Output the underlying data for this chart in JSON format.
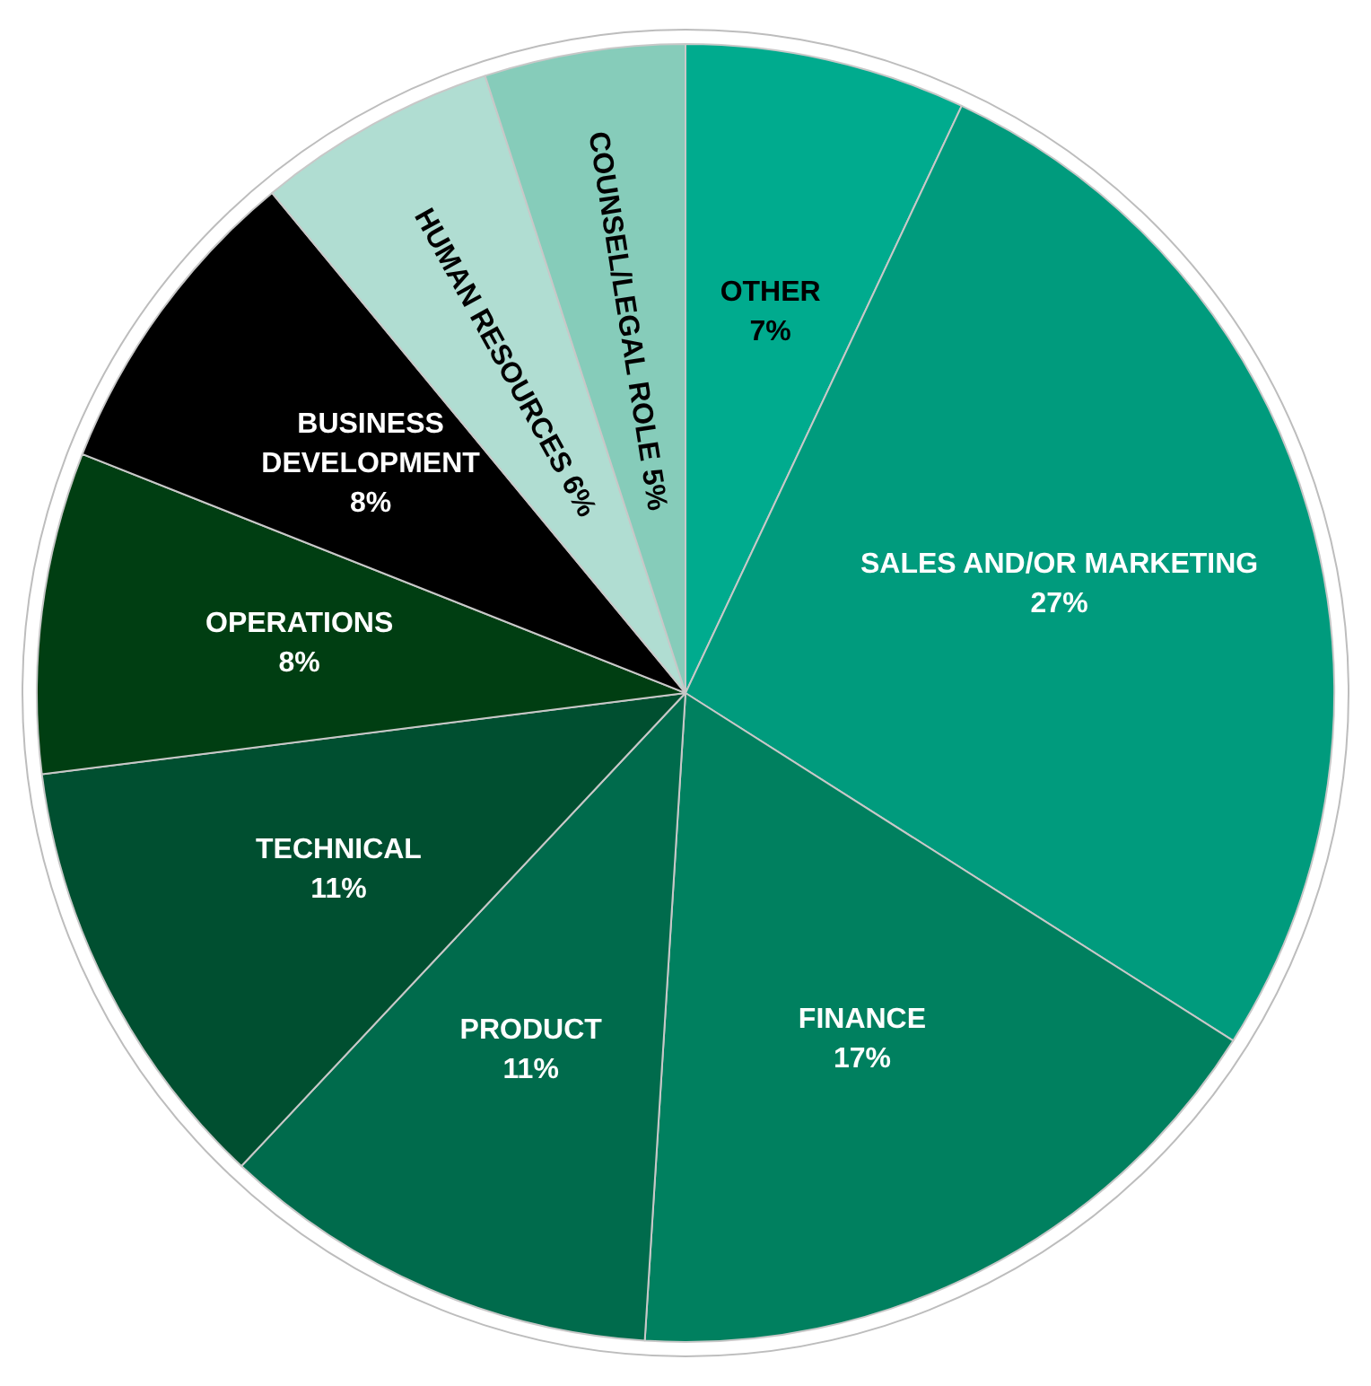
{
  "chart_data": {
    "type": "pie",
    "categories": [
      "OTHER",
      "SALES AND/OR MARKETING",
      "FINANCE",
      "PRODUCT",
      "TECHNICAL",
      "OPERATIONS",
      "BUSINESS DEVELOPMENT",
      "HUMAN RESOURCES",
      "COUNSEL/LEGAL ROLE"
    ],
    "values": [
      7,
      27,
      17,
      11,
      11,
      8,
      8,
      6,
      5
    ],
    "colors": [
      "#00ab8e",
      "#009b7d",
      "#00805f",
      "#006b4c",
      "#004f30",
      "#003e12",
      "#000000",
      "#b0ddd2",
      "#86ccba"
    ],
    "value_labels": [
      "7%",
      "27%",
      "17%",
      "11%",
      "11%",
      "8%",
      "8%",
      "6%",
      "5%"
    ],
    "legend": false
  }
}
